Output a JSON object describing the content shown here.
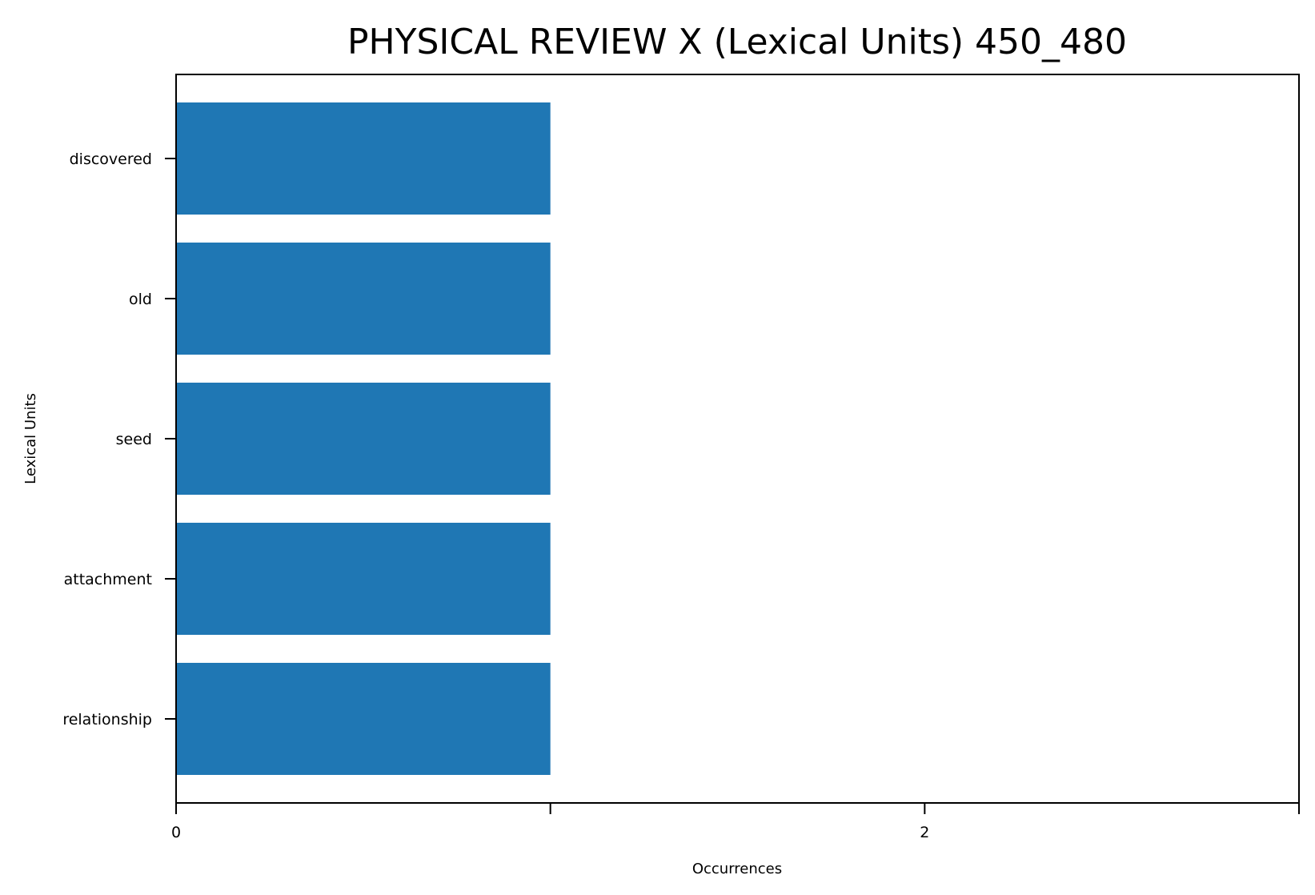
{
  "chart_data": {
    "type": "bar",
    "orientation": "horizontal",
    "title": "PHYSICAL REVIEW X (Lexical Units) 450_480",
    "xlabel": "Occurrences",
    "ylabel": "Lexical Units",
    "categories": [
      "discovered",
      "old",
      "seed",
      "attachment",
      "relationship"
    ],
    "values": [
      1,
      1,
      1,
      1,
      1
    ],
    "xlim": [
      0,
      3
    ],
    "xticks": [
      0,
      1,
      2,
      3
    ],
    "xtick_labels": [
      "0",
      "",
      "2",
      ""
    ],
    "grid": false,
    "legend": "none",
    "bar_color": "#1f77b4"
  }
}
